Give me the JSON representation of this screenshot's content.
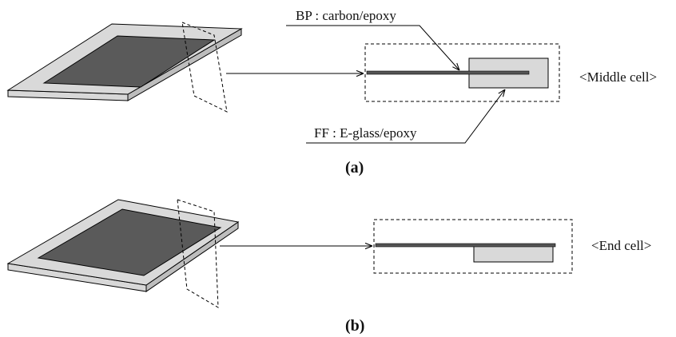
{
  "panels": [
    {
      "label": "(a)",
      "cell_label": "<Middle cell>",
      "callouts": [
        "BP : carbon/epoxy",
        "FF : E-glass/epoxy"
      ]
    },
    {
      "label": "(b)",
      "cell_label": "<End cell>"
    }
  ]
}
